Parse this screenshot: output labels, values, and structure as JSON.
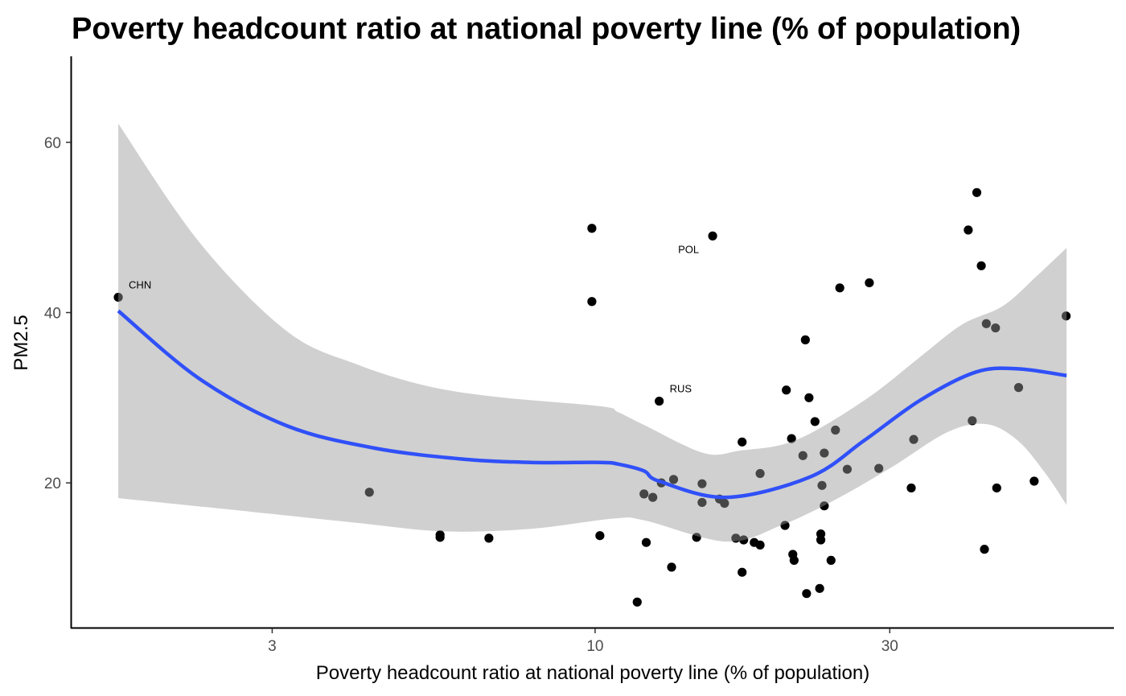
{
  "chart_data": {
    "type": "scatter",
    "title": "Poverty headcount ratio at national poverty line (% of population)",
    "xlabel": "Poverty headcount ratio at national poverty line (% of population)",
    "ylabel": "PM2.5",
    "x_scale": "log10",
    "xlim": [
      1.42,
      69.2
    ],
    "ylim": [
      3.0,
      70.1
    ],
    "x_ticks": [
      3,
      10,
      30
    ],
    "x_tick_labels": [
      "3",
      "10",
      "30"
    ],
    "y_ticks": [
      20,
      40,
      60
    ],
    "y_tick_labels": [
      "20",
      "40",
      "60"
    ],
    "grid": false,
    "legend": "none",
    "colors": {
      "points": "#000000",
      "smooth_line": "#3050f8",
      "confidence_band": "#999999"
    },
    "points": [
      {
        "x": 1.69,
        "y": 41.8,
        "label": "CHN"
      },
      {
        "x": 4.31,
        "y": 18.9
      },
      {
        "x": 5.61,
        "y": 13.9
      },
      {
        "x": 5.61,
        "y": 13.6
      },
      {
        "x": 6.73,
        "y": 13.5
      },
      {
        "x": 9.88,
        "y": 49.9
      },
      {
        "x": 9.88,
        "y": 41.3
      },
      {
        "x": 10.18,
        "y": 13.8
      },
      {
        "x": 15.5,
        "y": 49.0,
        "label": "POL"
      },
      {
        "x": 12.7,
        "y": 29.6,
        "label": "RUS"
      },
      {
        "x": 12.0,
        "y": 18.7
      },
      {
        "x": 12.4,
        "y": 18.3
      },
      {
        "x": 12.8,
        "y": 20.0
      },
      {
        "x": 13.4,
        "y": 20.4
      },
      {
        "x": 14.9,
        "y": 17.7
      },
      {
        "x": 14.9,
        "y": 19.9
      },
      {
        "x": 15.9,
        "y": 18.1
      },
      {
        "x": 16.2,
        "y": 17.6
      },
      {
        "x": 17.3,
        "y": 24.8
      },
      {
        "x": 18.5,
        "y": 21.1
      },
      {
        "x": 12.1,
        "y": 13.0
      },
      {
        "x": 14.6,
        "y": 13.6
      },
      {
        "x": 16.9,
        "y": 13.5
      },
      {
        "x": 17.4,
        "y": 13.3
      },
      {
        "x": 18.1,
        "y": 13.0
      },
      {
        "x": 18.5,
        "y": 12.7
      },
      {
        "x": 13.3,
        "y": 10.1
      },
      {
        "x": 17.3,
        "y": 9.5
      },
      {
        "x": 11.7,
        "y": 6.0
      },
      {
        "x": 20.3,
        "y": 15.0
      },
      {
        "x": 21.9,
        "y": 36.8
      },
      {
        "x": 20.4,
        "y": 30.9
      },
      {
        "x": 22.2,
        "y": 30.0
      },
      {
        "x": 22.7,
        "y": 27.2
      },
      {
        "x": 20.8,
        "y": 25.2
      },
      {
        "x": 21.7,
        "y": 23.2
      },
      {
        "x": 23.5,
        "y": 23.5
      },
      {
        "x": 24.5,
        "y": 26.2
      },
      {
        "x": 23.3,
        "y": 19.7
      },
      {
        "x": 23.5,
        "y": 17.3
      },
      {
        "x": 23.2,
        "y": 14.0
      },
      {
        "x": 23.2,
        "y": 13.3
      },
      {
        "x": 20.9,
        "y": 11.6
      },
      {
        "x": 21.0,
        "y": 10.9
      },
      {
        "x": 24.1,
        "y": 10.9
      },
      {
        "x": 22.0,
        "y": 7.0
      },
      {
        "x": 23.1,
        "y": 7.6
      },
      {
        "x": 24.9,
        "y": 42.9
      },
      {
        "x": 27.8,
        "y": 43.5
      },
      {
        "x": 25.6,
        "y": 21.6
      },
      {
        "x": 28.8,
        "y": 21.7
      },
      {
        "x": 32.8,
        "y": 25.1
      },
      {
        "x": 32.5,
        "y": 19.4
      },
      {
        "x": 41.5,
        "y": 54.1
      },
      {
        "x": 40.2,
        "y": 49.7
      },
      {
        "x": 42.2,
        "y": 45.5
      },
      {
        "x": 43.0,
        "y": 38.7
      },
      {
        "x": 44.5,
        "y": 38.2
      },
      {
        "x": 57.9,
        "y": 39.6
      },
      {
        "x": 48.5,
        "y": 31.2
      },
      {
        "x": 40.8,
        "y": 27.3
      },
      {
        "x": 44.7,
        "y": 19.4
      },
      {
        "x": 51.4,
        "y": 20.2
      },
      {
        "x": 42.7,
        "y": 12.2
      }
    ],
    "smooth_fit": {
      "method": "loess",
      "line": [
        {
          "x": 1.69,
          "y": 40.2
        },
        {
          "x": 2.29,
          "y": 32.2
        },
        {
          "x": 3.17,
          "y": 26.7
        },
        {
          "x": 4.38,
          "y": 24.1
        },
        {
          "x": 6.08,
          "y": 22.8
        },
        {
          "x": 7.87,
          "y": 22.4
        },
        {
          "x": 10.2,
          "y": 22.4
        },
        {
          "x": 10.9,
          "y": 22.2
        },
        {
          "x": 12.0,
          "y": 21.4
        },
        {
          "x": 12.7,
          "y": 20.2
        },
        {
          "x": 16.3,
          "y": 18.3
        },
        {
          "x": 22.3,
          "y": 20.7
        },
        {
          "x": 27.3,
          "y": 25.0
        },
        {
          "x": 33.6,
          "y": 29.7
        },
        {
          "x": 41.3,
          "y": 33.0
        },
        {
          "x": 48.3,
          "y": 33.4
        },
        {
          "x": 58.0,
          "y": 32.6
        }
      ],
      "band_upper": [
        {
          "x": 1.69,
          "y": 62.2
        },
        {
          "x": 2.29,
          "y": 48.2
        },
        {
          "x": 3.17,
          "y": 37.8
        },
        {
          "x": 4.12,
          "y": 33.9
        },
        {
          "x": 5.33,
          "y": 31.4
        },
        {
          "x": 6.92,
          "y": 30.1
        },
        {
          "x": 10.2,
          "y": 29.0
        },
        {
          "x": 10.9,
          "y": 28.3
        },
        {
          "x": 12.0,
          "y": 26.8
        },
        {
          "x": 15.0,
          "y": 23.5
        },
        {
          "x": 17.2,
          "y": 23.8
        },
        {
          "x": 21.1,
          "y": 25.0
        },
        {
          "x": 27.3,
          "y": 29.7
        },
        {
          "x": 33.6,
          "y": 34.8
        },
        {
          "x": 39.3,
          "y": 38.6
        },
        {
          "x": 45.8,
          "y": 40.8
        },
        {
          "x": 51.9,
          "y": 44.3
        },
        {
          "x": 58.0,
          "y": 47.6
        }
      ],
      "band_lower": [
        {
          "x": 1.69,
          "y": 18.2
        },
        {
          "x": 2.78,
          "y": 16.6
        },
        {
          "x": 4.12,
          "y": 15.3
        },
        {
          "x": 5.69,
          "y": 14.3
        },
        {
          "x": 7.87,
          "y": 14.6
        },
        {
          "x": 10.7,
          "y": 15.8
        },
        {
          "x": 12.0,
          "y": 15.6
        },
        {
          "x": 16.3,
          "y": 13.1
        },
        {
          "x": 20.0,
          "y": 15.0
        },
        {
          "x": 24.6,
          "y": 18.1
        },
        {
          "x": 30.3,
          "y": 21.9
        },
        {
          "x": 37.3,
          "y": 26.0
        },
        {
          "x": 43.0,
          "y": 26.9
        },
        {
          "x": 48.3,
          "y": 25.0
        },
        {
          "x": 53.5,
          "y": 21.2
        },
        {
          "x": 58.0,
          "y": 17.4
        }
      ]
    }
  }
}
